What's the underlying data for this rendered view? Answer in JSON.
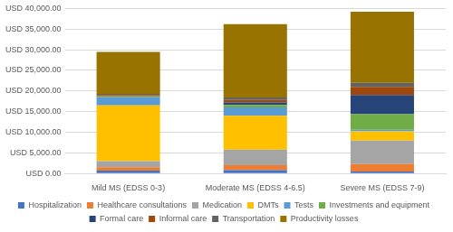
{
  "chart_data": {
    "type": "bar",
    "stacked": true,
    "grid": true,
    "legend": "bottom",
    "categories": [
      "Mild MS (EDSS 0-3)",
      "Moderate MS (EDSS 4-6.5)",
      "Severe MS (EDSS 7-9)"
    ],
    "ylim": [
      0,
      40000
    ],
    "yticks": [
      {
        "value": 0,
        "label": "USD 0.00"
      },
      {
        "value": 5000,
        "label": "USD 5,000.00"
      },
      {
        "value": 10000,
        "label": "USD 10,000.00"
      },
      {
        "value": 15000,
        "label": "USD 15,000.00"
      },
      {
        "value": 20000,
        "label": "USD 20,000.00"
      },
      {
        "value": 25000,
        "label": "USD 25,000.00"
      },
      {
        "value": 30000,
        "label": "USD 30,000.00"
      },
      {
        "value": 35000,
        "label": "USD 35,000.00"
      },
      {
        "value": 40000,
        "label": "USD 40,000.00"
      }
    ],
    "series": [
      {
        "name": "Hospitalization",
        "color": "#4472c4",
        "values": [
          700,
          800,
          500
        ]
      },
      {
        "name": "Healthcare consultations",
        "color": "#ed7d31",
        "values": [
          800,
          1200,
          1800
        ]
      },
      {
        "name": "Medication",
        "color": "#a5a5a5",
        "values": [
          1500,
          3800,
          5700
        ]
      },
      {
        "name": "DMTs",
        "color": "#ffc000",
        "values": [
          13500,
          8200,
          2200
        ]
      },
      {
        "name": "Tests",
        "color": "#5b9bd5",
        "values": [
          2000,
          2000,
          400
        ]
      },
      {
        "name": "Investments and equipment",
        "color": "#70ad47",
        "values": [
          200,
          600,
          3800
        ]
      },
      {
        "name": "Formal care",
        "color": "#264478",
        "values": [
          0,
          600,
          4600
        ]
      },
      {
        "name": "Informal care",
        "color": "#9e480e",
        "values": [
          300,
          600,
          2000
        ]
      },
      {
        "name": "Transportation",
        "color": "#636363",
        "values": [
          300,
          600,
          1000
        ]
      },
      {
        "name": "Productivity losses",
        "color": "#997300",
        "values": [
          10200,
          17800,
          17200
        ]
      }
    ]
  }
}
